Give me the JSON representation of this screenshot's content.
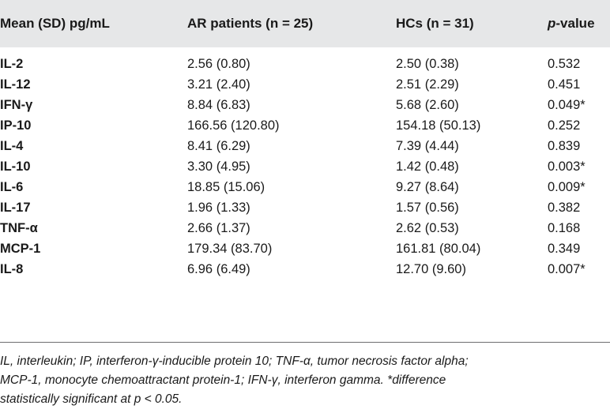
{
  "table": {
    "headers": [
      {
        "text": "Mean (SD) pg/mL"
      },
      {
        "text": "AR patients (n = 25)"
      },
      {
        "text": "HCs (n = 31)"
      },
      {
        "italic_part": "p",
        "rest": "-value"
      }
    ],
    "rows": [
      {
        "name": "IL-2",
        "ar": "2.56 (0.80)",
        "hc": "2.50 (0.38)",
        "p": "0.532"
      },
      {
        "name": "IL-12",
        "ar": "3.21 (2.40)",
        "hc": "2.51 (2.29)",
        "p": "0.451"
      },
      {
        "name": "IFN-γ",
        "ar": "8.84 (6.83)",
        "hc": "5.68 (2.60)",
        "p": "0.049*"
      },
      {
        "name": "IP-10",
        "ar": "166.56 (120.80)",
        "hc": "154.18 (50.13)",
        "p": "0.252"
      },
      {
        "name": "IL-4",
        "ar": "8.41 (6.29)",
        "hc": "7.39 (4.44)",
        "p": "0.839"
      },
      {
        "name": "IL-10",
        "ar": "3.30 (4.95)",
        "hc": "1.42 (0.48)",
        "p": "0.003*"
      },
      {
        "name": "IL-6",
        "ar": "18.85 (15.06)",
        "hc": "9.27 (8.64)",
        "p": "0.009*"
      },
      {
        "name": "IL-17",
        "ar": "1.96 (1.33)",
        "hc": "1.57 (0.56)",
        "p": "0.382"
      },
      {
        "name": "TNF-α",
        "ar": "2.66 (1.37)",
        "hc": "2.62 (0.53)",
        "p": "0.168"
      },
      {
        "name": "MCP-1",
        "ar": "179.34 (83.70)",
        "hc": "161.81 (80.04)",
        "p": "0.349"
      },
      {
        "name": "IL-8",
        "ar": "6.96 (6.49)",
        "hc": "12.70 (9.60)",
        "p": "0.007*"
      }
    ]
  },
  "footnote": {
    "line1": "IL, interleukin; IP, interferon-γ-inducible protein 10; TNF-α, tumor necrosis factor alpha;",
    "line2": "MCP-1, monocyte chemoattractant protein-1; IFN-γ, interferon gamma. *difference",
    "line3": "statistically significant at p < 0.05."
  },
  "colors": {
    "header_background": "#e6e7e8",
    "text": "#1a1a1a",
    "rule": "#6d6e70"
  }
}
